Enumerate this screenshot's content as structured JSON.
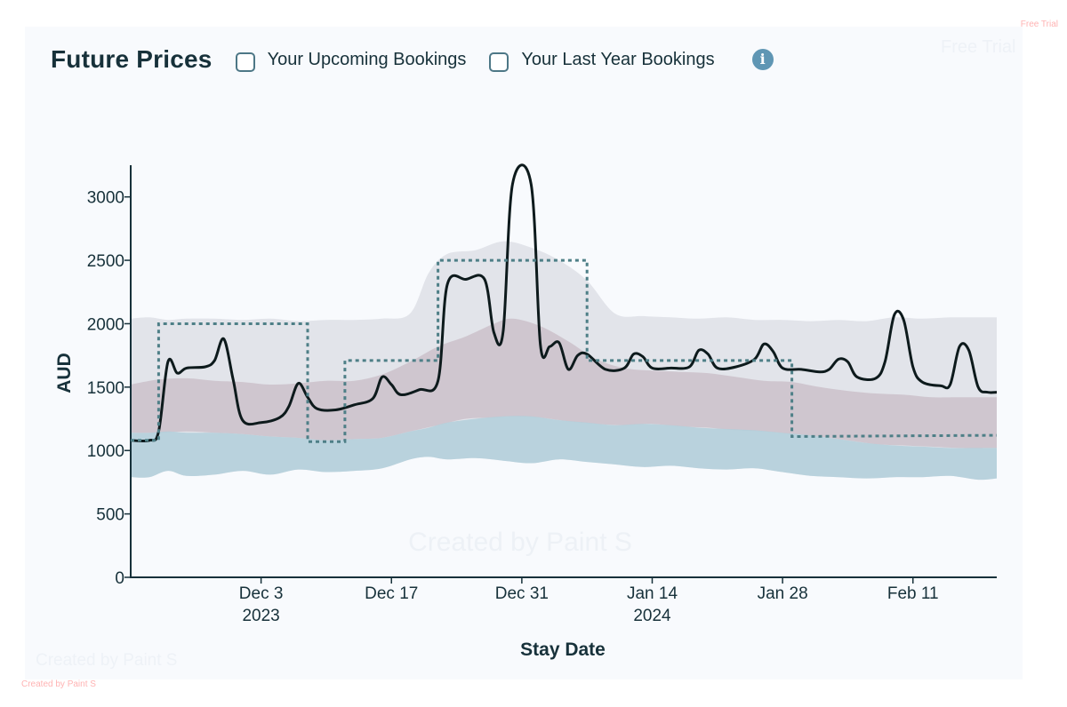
{
  "header": {
    "title": "Future Prices",
    "toggle_upcoming": "Your Upcoming Bookings",
    "toggle_last_year": "Your Last Year Bookings",
    "info_icon": "info-icon",
    "info_glyph": "i"
  },
  "watermarks": {
    "top_right_small": "Free Trial",
    "top_right": "Free Trial",
    "bottom_left": "Created by Paint S",
    "bottom_left_small": "Created by Paint S",
    "center": "Created by Paint S"
  },
  "colors": {
    "line": "#0d1a1c",
    "dashed": "#4e7f87",
    "band_outer": "#dfe1e8",
    "band_mid": "#c8bcc6",
    "band_inner": "#b2cfda"
  },
  "chart_data": {
    "type": "line",
    "xlabel": "Stay Date",
    "ylabel": "AUD",
    "ylim": [
      0,
      3250
    ],
    "yticks": [
      0,
      500,
      1000,
      1500,
      2000,
      2500,
      3000
    ],
    "x_start": "2023-11-19",
    "x_end": "2024-02-20",
    "xticks": [
      {
        "date": "2023-12-03",
        "label": "Dec 3",
        "sublabel": "2023"
      },
      {
        "date": "2023-12-17",
        "label": "Dec 17",
        "sublabel": ""
      },
      {
        "date": "2023-12-31",
        "label": "Dec 31",
        "sublabel": ""
      },
      {
        "date": "2024-01-14",
        "label": "Jan 14",
        "sublabel": "2024"
      },
      {
        "date": "2024-01-28",
        "label": "Jan 28",
        "sublabel": ""
      },
      {
        "date": "2024-02-11",
        "label": "Feb 11",
        "sublabel": ""
      }
    ],
    "series": [
      {
        "style": "solid",
        "points": [
          [
            "2023-11-19",
            1080
          ],
          [
            "2023-11-21",
            1080
          ],
          [
            "2023-11-22",
            1150
          ],
          [
            "2023-11-23",
            1700
          ],
          [
            "2023-11-24",
            1610
          ],
          [
            "2023-11-25",
            1650
          ],
          [
            "2023-11-27",
            1660
          ],
          [
            "2023-11-28",
            1710
          ],
          [
            "2023-11-29",
            1880
          ],
          [
            "2023-11-30",
            1560
          ],
          [
            "2023-12-01",
            1240
          ],
          [
            "2023-12-03",
            1220
          ],
          [
            "2023-12-05",
            1260
          ],
          [
            "2023-12-06",
            1350
          ],
          [
            "2023-12-07",
            1530
          ],
          [
            "2023-12-08",
            1420
          ],
          [
            "2023-12-09",
            1330
          ],
          [
            "2023-12-11",
            1320
          ],
          [
            "2023-12-13",
            1360
          ],
          [
            "2023-12-15",
            1410
          ],
          [
            "2023-12-16",
            1580
          ],
          [
            "2023-12-17",
            1520
          ],
          [
            "2023-12-18",
            1440
          ],
          [
            "2023-12-20",
            1480
          ],
          [
            "2023-12-22",
            1550
          ],
          [
            "2023-12-23",
            2310
          ],
          [
            "2023-12-25",
            2350
          ],
          [
            "2023-12-27",
            2350
          ],
          [
            "2023-12-28",
            1930
          ],
          [
            "2023-12-29",
            1940
          ],
          [
            "2023-12-30",
            3100
          ],
          [
            "2024-01-01",
            3100
          ],
          [
            "2024-01-02",
            1830
          ],
          [
            "2024-01-03",
            1820
          ],
          [
            "2024-01-04",
            1850
          ],
          [
            "2024-01-05",
            1640
          ],
          [
            "2024-01-06",
            1750
          ],
          [
            "2024-01-07",
            1760
          ],
          [
            "2024-01-09",
            1640
          ],
          [
            "2024-01-11",
            1650
          ],
          [
            "2024-01-12",
            1760
          ],
          [
            "2024-01-13",
            1740
          ],
          [
            "2024-01-14",
            1650
          ],
          [
            "2024-01-16",
            1650
          ],
          [
            "2024-01-18",
            1660
          ],
          [
            "2024-01-19",
            1790
          ],
          [
            "2024-01-20",
            1760
          ],
          [
            "2024-01-21",
            1650
          ],
          [
            "2024-01-23",
            1660
          ],
          [
            "2024-01-25",
            1720
          ],
          [
            "2024-01-26",
            1840
          ],
          [
            "2024-01-27",
            1780
          ],
          [
            "2024-01-28",
            1650
          ],
          [
            "2024-01-30",
            1640
          ],
          [
            "2024-02-01",
            1620
          ],
          [
            "2024-02-02",
            1640
          ],
          [
            "2024-02-03",
            1720
          ],
          [
            "2024-02-04",
            1700
          ],
          [
            "2024-02-05",
            1580
          ],
          [
            "2024-02-07",
            1570
          ],
          [
            "2024-02-08",
            1700
          ],
          [
            "2024-02-09",
            2070
          ],
          [
            "2024-02-10",
            2030
          ],
          [
            "2024-02-11",
            1660
          ],
          [
            "2024-02-12",
            1540
          ],
          [
            "2024-02-14",
            1510
          ],
          [
            "2024-02-15",
            1520
          ],
          [
            "2024-02-16",
            1820
          ],
          [
            "2024-02-17",
            1790
          ],
          [
            "2024-02-18",
            1500
          ],
          [
            "2024-02-19",
            1460
          ],
          [
            "2024-02-20",
            1460
          ]
        ]
      },
      {
        "style": "dashed",
        "points": [
          [
            "2023-11-19",
            1080
          ],
          [
            "2023-11-22",
            1080
          ],
          [
            "2023-11-22",
            2000
          ],
          [
            "2023-12-08",
            2000
          ],
          [
            "2023-12-08",
            1070
          ],
          [
            "2023-12-12",
            1070
          ],
          [
            "2023-12-12",
            1710
          ],
          [
            "2023-12-22",
            1710
          ],
          [
            "2023-12-22",
            2500
          ],
          [
            "2024-01-07",
            2500
          ],
          [
            "2024-01-07",
            1710
          ],
          [
            "2024-01-29",
            1710
          ],
          [
            "2024-01-29",
            1110
          ],
          [
            "2024-02-20",
            1120
          ]
        ]
      }
    ],
    "bands": [
      {
        "name": "outer",
        "points": [
          [
            "2023-11-19",
            2040,
            790
          ],
          [
            "2023-11-21",
            2050,
            790
          ],
          [
            "2023-11-23",
            2030,
            840
          ],
          [
            "2023-11-25",
            2040,
            800
          ],
          [
            "2023-11-28",
            2040,
            810
          ],
          [
            "2023-12-01",
            2030,
            840
          ],
          [
            "2023-12-04",
            2040,
            810
          ],
          [
            "2023-12-07",
            2020,
            850
          ],
          [
            "2023-12-10",
            2030,
            830
          ],
          [
            "2023-12-13",
            2030,
            840
          ],
          [
            "2023-12-16",
            2040,
            860
          ],
          [
            "2023-12-19",
            2080,
            930
          ],
          [
            "2023-12-21",
            2400,
            950
          ],
          [
            "2023-12-23",
            2550,
            930
          ],
          [
            "2023-12-26",
            2580,
            940
          ],
          [
            "2023-12-29",
            2650,
            920
          ],
          [
            "2024-01-01",
            2600,
            900
          ],
          [
            "2024-01-04",
            2500,
            930
          ],
          [
            "2024-01-07",
            2340,
            910
          ],
          [
            "2024-01-10",
            2080,
            890
          ],
          [
            "2024-01-13",
            2060,
            870
          ],
          [
            "2024-01-16",
            2050,
            880
          ],
          [
            "2024-01-19",
            2040,
            860
          ],
          [
            "2024-01-22",
            2050,
            850
          ],
          [
            "2024-01-25",
            2030,
            860
          ],
          [
            "2024-01-28",
            2030,
            830
          ],
          [
            "2024-01-31",
            2020,
            800
          ],
          [
            "2024-02-03",
            2030,
            790
          ],
          [
            "2024-02-06",
            2020,
            780
          ],
          [
            "2024-02-09",
            2050,
            790
          ],
          [
            "2024-02-12",
            2040,
            790
          ],
          [
            "2024-02-15",
            2050,
            800
          ],
          [
            "2024-02-18",
            2050,
            770
          ],
          [
            "2024-02-20",
            2050,
            780
          ]
        ]
      },
      {
        "name": "mid",
        "points": [
          [
            "2023-11-19",
            1520,
            1140
          ],
          [
            "2023-11-22",
            1560,
            1140
          ],
          [
            "2023-11-25",
            1570,
            1150
          ],
          [
            "2023-11-28",
            1550,
            1140
          ],
          [
            "2023-12-01",
            1540,
            1130
          ],
          [
            "2023-12-04",
            1520,
            1110
          ],
          [
            "2023-12-07",
            1530,
            1100
          ],
          [
            "2023-12-10",
            1550,
            1080
          ],
          [
            "2023-12-13",
            1550,
            1090
          ],
          [
            "2023-12-16",
            1600,
            1100
          ],
          [
            "2023-12-19",
            1700,
            1150
          ],
          [
            "2023-12-22",
            1820,
            1200
          ],
          [
            "2023-12-25",
            1900,
            1250
          ],
          [
            "2023-12-28",
            2000,
            1260
          ],
          [
            "2023-12-30",
            2040,
            1270
          ],
          [
            "2024-01-02",
            1980,
            1260
          ],
          [
            "2024-01-05",
            1860,
            1230
          ],
          [
            "2024-01-08",
            1720,
            1210
          ],
          [
            "2024-01-11",
            1650,
            1200
          ],
          [
            "2024-01-14",
            1630,
            1210
          ],
          [
            "2024-01-17",
            1620,
            1190
          ],
          [
            "2024-01-20",
            1610,
            1180
          ],
          [
            "2024-01-23",
            1580,
            1160
          ],
          [
            "2024-01-26",
            1550,
            1150
          ],
          [
            "2024-01-29",
            1540,
            1130
          ],
          [
            "2024-02-01",
            1500,
            1110
          ],
          [
            "2024-02-04",
            1470,
            1080
          ],
          [
            "2024-02-07",
            1450,
            1050
          ],
          [
            "2024-02-10",
            1440,
            1040
          ],
          [
            "2024-02-13",
            1420,
            1030
          ],
          [
            "2024-02-16",
            1420,
            1020
          ],
          [
            "2024-02-20",
            1420,
            1020
          ]
        ]
      },
      {
        "name": "inner",
        "points": [
          [
            "2023-11-19",
            1140,
            790
          ],
          [
            "2023-11-21",
            1140,
            790
          ],
          [
            "2023-11-23",
            1150,
            840
          ],
          [
            "2023-11-25",
            1140,
            800
          ],
          [
            "2023-11-28",
            1140,
            810
          ],
          [
            "2023-12-01",
            1130,
            840
          ],
          [
            "2023-12-04",
            1110,
            810
          ],
          [
            "2023-12-07",
            1100,
            850
          ],
          [
            "2023-12-10",
            1080,
            830
          ],
          [
            "2023-12-13",
            1090,
            840
          ],
          [
            "2023-12-16",
            1100,
            860
          ],
          [
            "2023-12-19",
            1150,
            930
          ],
          [
            "2023-12-21",
            1180,
            950
          ],
          [
            "2023-12-23",
            1220,
            930
          ],
          [
            "2023-12-26",
            1250,
            940
          ],
          [
            "2023-12-29",
            1270,
            920
          ],
          [
            "2024-01-01",
            1270,
            900
          ],
          [
            "2024-01-04",
            1240,
            930
          ],
          [
            "2024-01-07",
            1220,
            910
          ],
          [
            "2024-01-10",
            1200,
            890
          ],
          [
            "2024-01-13",
            1210,
            870
          ],
          [
            "2024-01-16",
            1200,
            880
          ],
          [
            "2024-01-19",
            1180,
            860
          ],
          [
            "2024-01-22",
            1170,
            850
          ],
          [
            "2024-01-25",
            1160,
            860
          ],
          [
            "2024-01-28",
            1140,
            830
          ],
          [
            "2024-01-31",
            1120,
            800
          ],
          [
            "2024-02-03",
            1090,
            790
          ],
          [
            "2024-02-06",
            1060,
            780
          ],
          [
            "2024-02-09",
            1040,
            790
          ],
          [
            "2024-02-12",
            1030,
            790
          ],
          [
            "2024-02-15",
            1020,
            800
          ],
          [
            "2024-02-18",
            1020,
            770
          ],
          [
            "2024-02-20",
            1020,
            780
          ]
        ]
      }
    ]
  }
}
